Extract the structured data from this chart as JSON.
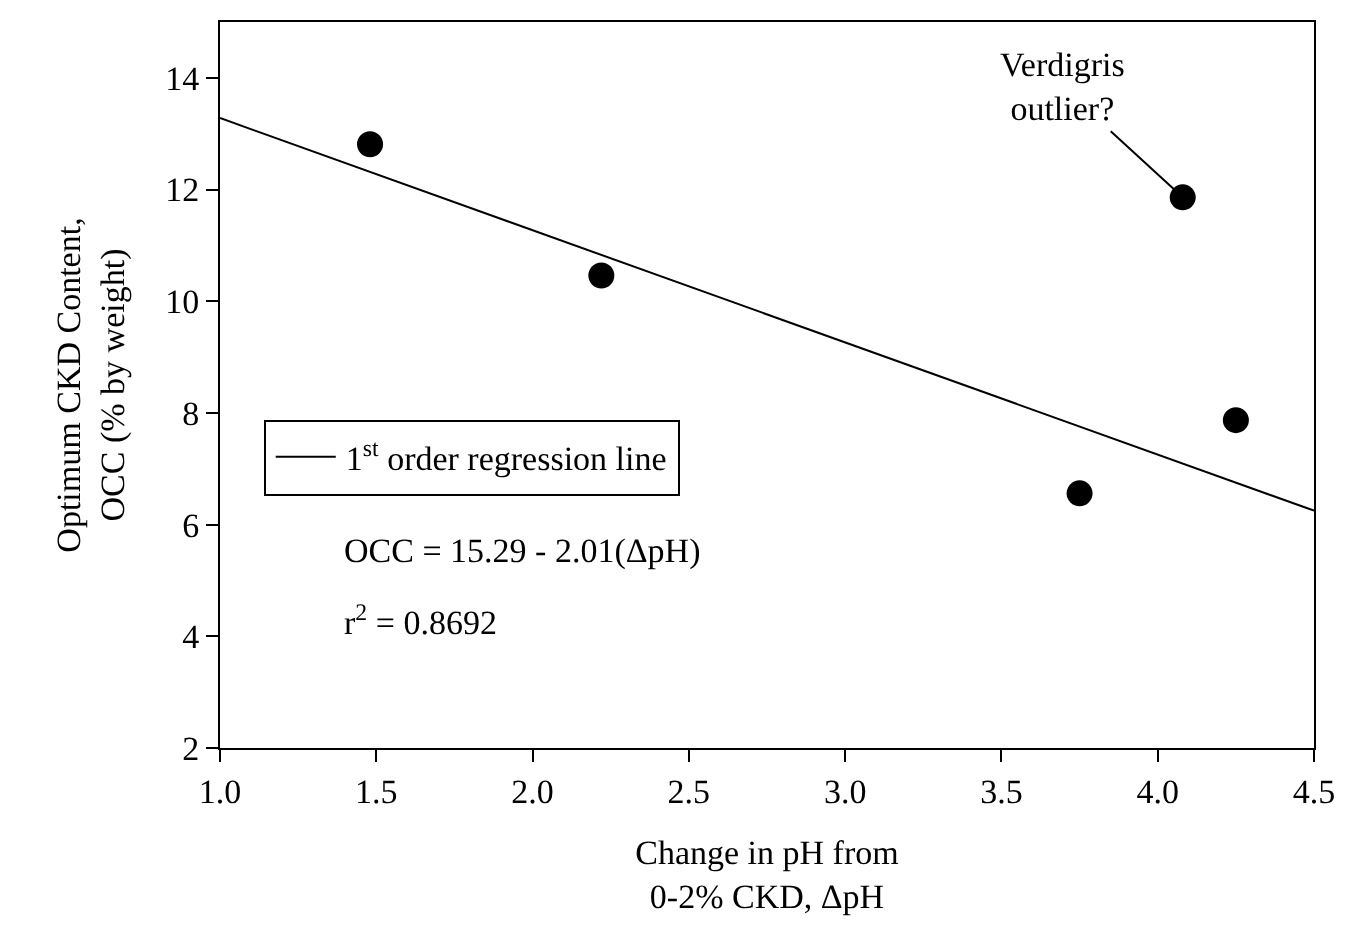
{
  "chart_data": {
    "type": "scatter",
    "xlabel": "Change in pH from\n0-2% CKD, ΔpH",
    "ylabel": "Optimum CKD Content,\nOCC (% by weight)",
    "x": [
      1.48,
      2.22,
      3.75,
      4.08,
      4.25
    ],
    "series": [
      {
        "color": "#000000",
        "values": [
          12.81,
          10.46,
          6.56,
          11.86,
          7.87
        ],
        "marker": "circle"
      },
      {
        "type": "line",
        "name": "1$^{st}$ order regression line",
        "color": "#000000",
        "x": [
          1.0,
          4.5
        ],
        "values": [
          13.28,
          6.25
        ],
        "line_style": "solid",
        "marker": "none"
      }
    ],
    "xlim": [
      1.0,
      4.5
    ],
    "xticks": [
      {
        "value": 1.0,
        "label": "1.0"
      },
      {
        "value": 1.5,
        "label": "1.5"
      },
      {
        "value": 2.0,
        "label": "2.0"
      },
      {
        "value": 2.5,
        "label": "2.5"
      },
      {
        "value": 3.0,
        "label": "3.0"
      },
      {
        "value": 3.5,
        "label": "3.5"
      },
      {
        "value": 4.0,
        "label": "4.0"
      },
      {
        "value": 4.5,
        "label": "4.5"
      }
    ],
    "ylim": [
      2,
      15
    ],
    "yticks": [
      2,
      4,
      6,
      8,
      10,
      12,
      14
    ],
    "annotations": [
      {
        "text": "Verdigris\noutlier?",
        "x": 4.08,
        "y": 11.86
      },
      "OCC = 15.29 - 2.01(ΔpH)",
      "r$^{2}$ = 0.8692"
    ],
    "legend": "left"
  }
}
